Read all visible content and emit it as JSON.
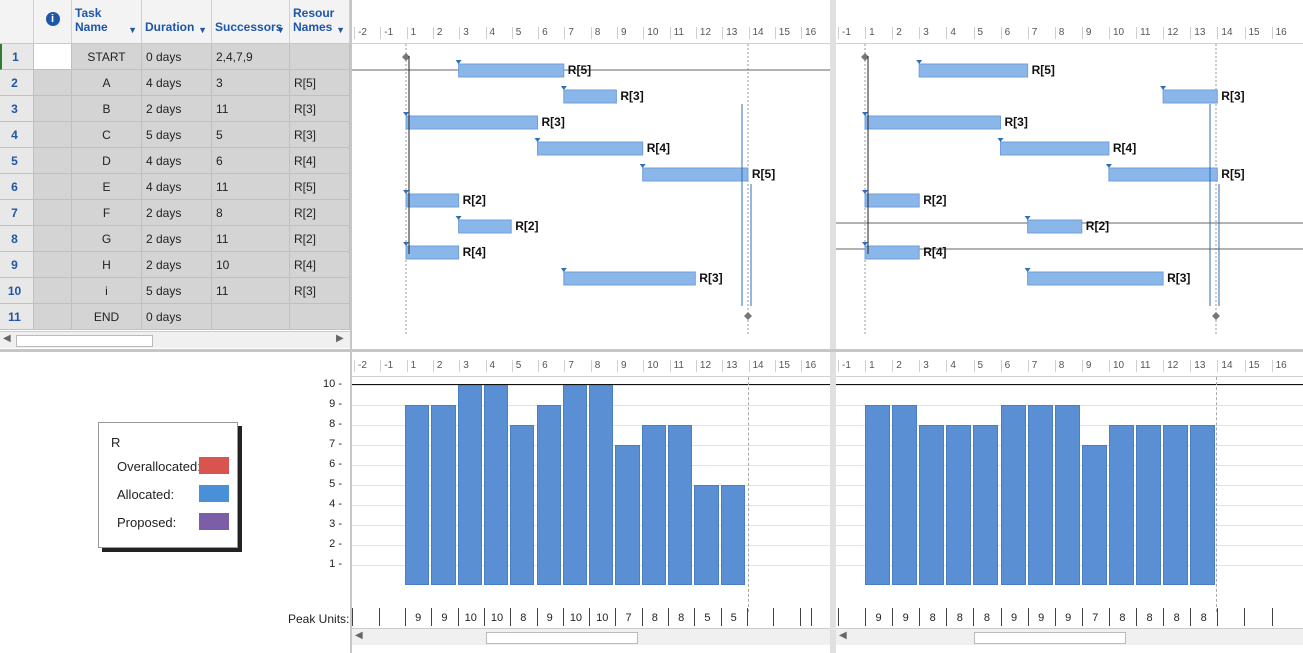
{
  "table": {
    "headers": {
      "task_name": "Task Name",
      "duration": "Duration",
      "successors": "Successors",
      "resource_names": "Resour Names"
    },
    "rows": [
      {
        "id": "1",
        "name": "START",
        "duration": "0 days",
        "successors": "2,4,7,9",
        "resources": ""
      },
      {
        "id": "2",
        "name": "A",
        "duration": "4 days",
        "successors": "3",
        "resources": "R[5]"
      },
      {
        "id": "3",
        "name": "B",
        "duration": "2 days",
        "successors": "11",
        "resources": "R[3]"
      },
      {
        "id": "4",
        "name": "C",
        "duration": "5 days",
        "successors": "5",
        "resources": "R[3]"
      },
      {
        "id": "5",
        "name": "D",
        "duration": "4 days",
        "successors": "6",
        "resources": "R[4]"
      },
      {
        "id": "6",
        "name": "E",
        "duration": "4 days",
        "successors": "11",
        "resources": "R[5]"
      },
      {
        "id": "7",
        "name": "F",
        "duration": "2 days",
        "successors": "8",
        "resources": "R[2]"
      },
      {
        "id": "8",
        "name": "G",
        "duration": "2 days",
        "successors": "11",
        "resources": "R[2]"
      },
      {
        "id": "9",
        "name": "H",
        "duration": "2 days",
        "successors": "10",
        "resources": "R[4]"
      },
      {
        "id": "10",
        "name": "i",
        "duration": "5 days",
        "successors": "11",
        "resources": "R[3]"
      },
      {
        "id": "11",
        "name": "END",
        "duration": "0 days",
        "successors": "",
        "resources": ""
      }
    ]
  },
  "timescale_left": [
    "-2",
    "-1",
    "1",
    "2",
    "3",
    "4",
    "5",
    "6",
    "7",
    "8",
    "9",
    "10",
    "11",
    "12",
    "13",
    "14",
    "15",
    "16"
  ],
  "timescale_right": [
    "-1",
    "1",
    "2",
    "3",
    "4",
    "5",
    "6",
    "7",
    "8",
    "9",
    "10",
    "11",
    "12",
    "13",
    "14",
    "15",
    "16"
  ],
  "legend": {
    "resource": "R",
    "items": [
      {
        "label": "Overallocated:",
        "color": "#d9534f"
      },
      {
        "label": "Allocated:",
        "color": "#4a90d9"
      },
      {
        "label": "Proposed:",
        "color": "#7b5ea7"
      }
    ]
  },
  "peak_units_label": "Peak Units:",
  "y_axis": [
    "10",
    "9",
    "8",
    "7",
    "6",
    "5",
    "4",
    "3",
    "2",
    "1"
  ],
  "gantt_left_labels": [
    "R[5]",
    "R[3]",
    "R[3]",
    "R[4]",
    "R[5]",
    "R[2]",
    "R[2]",
    "R[4]",
    "R[3]"
  ],
  "gantt_right_labels": [
    "R[5]",
    "R[3]",
    "R[3]",
    "R[4]",
    "R[5]",
    "R[2]",
    "R[2]",
    "R[4]",
    "R[3]"
  ],
  "chart_data": [
    {
      "type": "bar",
      "title": "",
      "categories": [
        "1",
        "2",
        "3",
        "4",
        "5",
        "6",
        "7",
        "8",
        "9",
        "10",
        "11",
        "12",
        "13"
      ],
      "values": [
        9,
        9,
        10,
        10,
        8,
        9,
        10,
        10,
        7,
        8,
        8,
        5,
        5
      ],
      "ylim": [
        0,
        10
      ]
    },
    {
      "type": "bar",
      "title": "",
      "categories": [
        "1",
        "2",
        "3",
        "4",
        "5",
        "6",
        "7",
        "8",
        "9",
        "10",
        "11",
        "12",
        "13"
      ],
      "values": [
        9,
        9,
        8,
        8,
        8,
        9,
        9,
        9,
        7,
        8,
        8,
        8,
        8
      ],
      "ylim": [
        0,
        10
      ]
    }
  ]
}
